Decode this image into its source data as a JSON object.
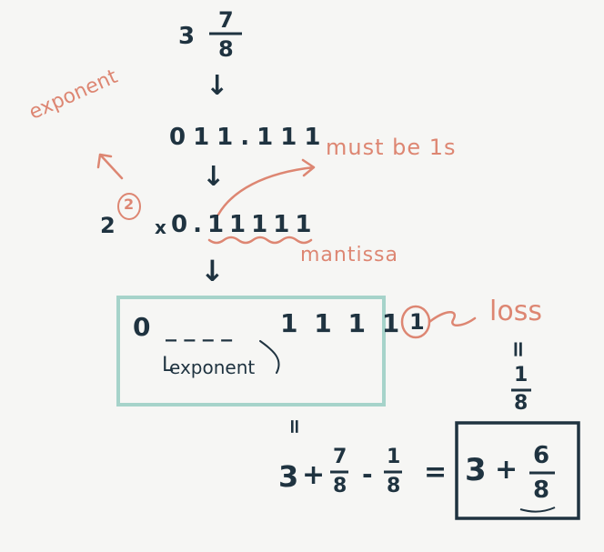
{
  "top_value": {
    "whole": "3",
    "numerator": "7",
    "denominator": "8"
  },
  "arrow_symbol": "↓",
  "binary": "011.111",
  "normalized": {
    "base": "2",
    "exponent": "2",
    "times": "x",
    "mantissa": "0.11111"
  },
  "labels": {
    "exponent": "exponent",
    "must_be_1s": "must be 1s",
    "mantissa": "mantissa",
    "loss": "loss",
    "exponent_slot": "exponent"
  },
  "storage_box": {
    "sign": "0",
    "blanks": "_ _ _ _",
    "ones": "1 1 1 1",
    "lost_bit": "1"
  },
  "lost_value": {
    "equals": "=",
    "numerator": "1",
    "denominator": "8"
  },
  "bottom_equation": {
    "equals_top": "=",
    "whole": "3",
    "plus": "+",
    "frac1_num": "7",
    "frac1_den": "8",
    "minus": "-",
    "frac2_num": "1",
    "frac2_den": "8",
    "equals": "=",
    "result_whole": "3",
    "result_plus": "+",
    "result_num": "6",
    "result_den": "8"
  },
  "colors": {
    "ink": "#1f3340",
    "annotation": "#dd8672",
    "box": "#a6d3ca",
    "background": "#f6f6f4"
  }
}
